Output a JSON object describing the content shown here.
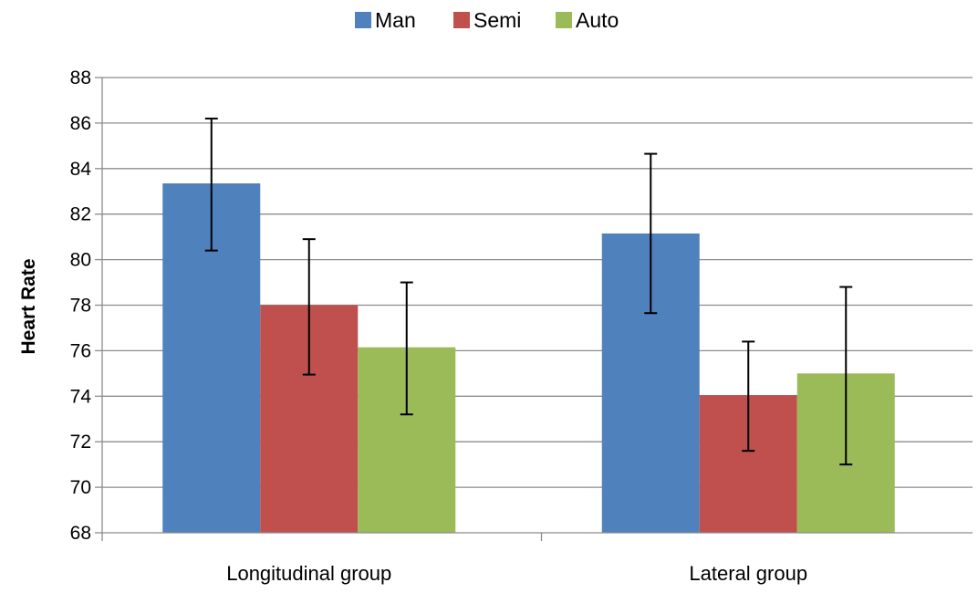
{
  "chart_data": {
    "type": "bar",
    "title": "",
    "xlabel": "",
    "ylabel": "Heart Rate",
    "categories": [
      "Longitudinal group",
      "Lateral group"
    ],
    "series": [
      {
        "name": "Man",
        "color": "#4f81bd",
        "values": [
          83.35,
          81.15
        ],
        "error_low": [
          80.4,
          77.65
        ],
        "error_high": [
          86.2,
          84.65
        ]
      },
      {
        "name": "Semi",
        "color": "#c0504d",
        "values": [
          78.0,
          74.05
        ],
        "error_low": [
          74.95,
          71.6
        ],
        "error_high": [
          80.9,
          76.4
        ]
      },
      {
        "name": "Auto",
        "color": "#9bbb59",
        "values": [
          76.15,
          75.0
        ],
        "error_low": [
          73.2,
          71.0
        ],
        "error_high": [
          79.0,
          78.8
        ]
      }
    ],
    "ylim": [
      68,
      88
    ],
    "yticks": [
      68,
      70,
      72,
      74,
      76,
      78,
      80,
      82,
      84,
      86,
      88
    ],
    "grid": true,
    "legend": "top-center"
  }
}
